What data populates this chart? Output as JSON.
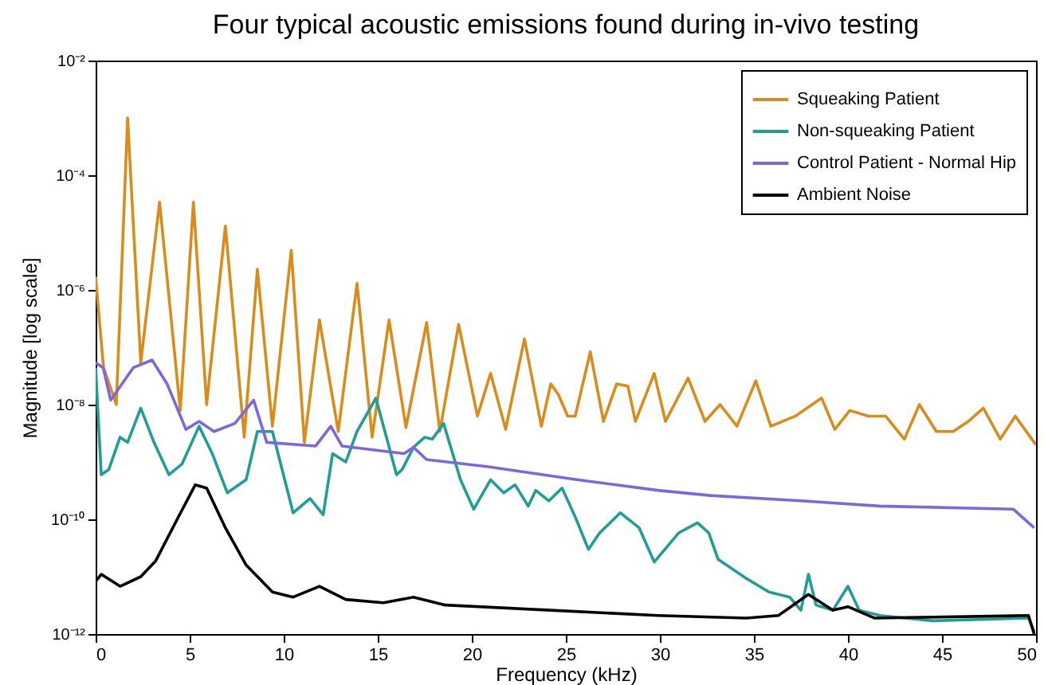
{
  "chart_data": {
    "type": "line",
    "title": "Four typical acoustic emissions found during in-vivo testing",
    "xlabel": "Frequency (kHz)",
    "ylabel": "Magnitude [log scale]",
    "log": "y",
    "legend": "top right",
    "xlim": [
      0,
      50
    ],
    "xticks": [
      0,
      5,
      10,
      15,
      20,
      25,
      30,
      35,
      40,
      45,
      50
    ],
    "ylim": [
      1e-12,
      0.01
    ],
    "yticks": [
      {
        "value": 1e-12,
        "label": "10⁻¹²"
      },
      {
        "value": 1e-10,
        "label": "10⁻¹⁰"
      },
      {
        "value": 1e-08,
        "label": "10⁻⁸"
      },
      {
        "value": 1e-06,
        "label": "10⁻⁶"
      },
      {
        "value": 0.0001,
        "label": "10⁻⁴"
      },
      {
        "value": 0.01,
        "label": "10⁻²"
      }
    ],
    "series": [
      {
        "name": "Squeaking Patient",
        "color": "#d98c1a",
        "x": [
          0,
          0.42,
          1.1,
          1.7,
          2.4,
          3.4,
          4.5,
          5.2,
          5.9,
          6.9,
          7.9,
          8.6,
          9.4,
          10.4,
          11.1,
          11.9,
          12.9,
          13.9,
          14.7,
          15.6,
          16.5,
          17.6,
          18.3,
          19.3,
          20.3,
          21.0,
          21.8,
          22.8,
          23.7,
          24.2,
          24.6,
          25.1,
          25.5,
          26.3,
          27.0,
          27.7,
          28.3,
          28.7,
          29.7,
          30.3,
          31.5,
          32.4,
          33.2,
          34.1,
          35.1,
          35.9,
          37.2,
          38.6,
          39.3,
          40.1,
          41.1,
          42.0,
          43.0,
          43.8,
          44.7,
          45.6,
          46.4,
          47.2,
          48.1,
          48.9,
          49.9,
          50
        ],
        "values": [
          1.7e-06,
          4.4e-08,
          1e-08,
          0.001,
          5.4e-08,
          3.4e-05,
          7.9e-09,
          3.4e-05,
          1e-08,
          1.3e-05,
          2.7e-09,
          2.3e-06,
          4.2e-09,
          4.9e-06,
          2.2e-09,
          3e-07,
          3.4e-09,
          1.3e-06,
          2.7e-09,
          3e-07,
          4e-09,
          2.7e-07,
          3.4e-09,
          2.5e-07,
          6.3e-09,
          3.5e-08,
          3.7e-09,
          1.4e-07,
          4.2e-09,
          2.3e-08,
          1.5e-08,
          6.3e-09,
          6.3e-09,
          8.3e-08,
          5.1e-09,
          2.3e-08,
          2.1e-08,
          5.1e-09,
          3.5e-08,
          5.1e-09,
          2.9e-08,
          5.1e-09,
          1e-08,
          4.2e-09,
          2.6e-08,
          4.2e-09,
          6.3e-09,
          1.3e-08,
          3.7e-09,
          7.9e-09,
          6.3e-09,
          6.3e-09,
          2.5e-09,
          1e-08,
          3.4e-09,
          3.4e-09,
          5.1e-09,
          8.7e-09,
          2.5e-09,
          6.3e-09,
          2.2e-09,
          2e-09
        ]
      },
      {
        "name": "Non-squeaking Patient",
        "color": "#1f9e96",
        "x": [
          0,
          0.3,
          0.7,
          1.3,
          1.7,
          2.4,
          3.1,
          3.9,
          4.6,
          5.5,
          6.2,
          7.0,
          8.0,
          8.6,
          9.4,
          10.5,
          11.4,
          12.1,
          12.6,
          13.3,
          13.9,
          14.9,
          16.0,
          16.3,
          16.9,
          17.5,
          17.9,
          18.5,
          19.4,
          20.1,
          21.0,
          21.7,
          22.3,
          23.0,
          23.4,
          24.1,
          24.8,
          25.5,
          26.2,
          26.8,
          27.9,
          28.9,
          29.7,
          31.0,
          32.0,
          32.6,
          33.1,
          34.6,
          35.8,
          36.9,
          37.5,
          37.9,
          38.3,
          39.2,
          40.0,
          40.6,
          41.7,
          44.5,
          49.6,
          49.9
        ],
        "values": [
          4.4e-08,
          6e-10,
          7.4e-10,
          2.7e-09,
          2.2e-09,
          8.7e-09,
          2.2e-09,
          6e-10,
          9.3e-10,
          4.2e-09,
          1.4e-09,
          2.9e-10,
          4.9e-10,
          3.4e-09,
          3.4e-09,
          1.3e-10,
          2.3e-10,
          1.2e-10,
          1.4e-09,
          1e-09,
          3.4e-09,
          1.3e-08,
          6e-10,
          7.4e-10,
          1.8e-09,
          2.7e-09,
          2.5e-09,
          4.7e-09,
          4.9e-10,
          1.5e-10,
          4.9e-10,
          2.9e-10,
          4e-10,
          1.7e-10,
          3.2e-10,
          2.1e-10,
          3.5e-10,
          1.1e-10,
          3e-11,
          5.8e-11,
          1.3e-10,
          7.1e-11,
          1.8e-11,
          5.8e-11,
          8.7e-11,
          5.8e-11,
          2e-11,
          9.3e-12,
          5.4e-12,
          4.4e-12,
          2.6e-12,
          1.1e-11,
          3.2e-12,
          2.6e-12,
          6.8e-12,
          2.6e-12,
          2.1e-12,
          1.7e-12,
          1.9e-12,
          1.1e-12
        ]
      },
      {
        "name": "Control Patient - Normal Hip",
        "color": "#7b68e0",
        "x": [
          0,
          0.4,
          0.8,
          2.0,
          3.0,
          3.8,
          4.8,
          5.5,
          6.3,
          7.4,
          8.4,
          9.1,
          11.7,
          12.5,
          13.1,
          16.4,
          16.9,
          17.6,
          20.8,
          25.6,
          29.9,
          32.7,
          37.5,
          41.7,
          48.8,
          49.9
        ],
        "values": [
          5.4e-08,
          4.4e-08,
          1.2e-08,
          4.4e-08,
          6e-08,
          2.3e-08,
          3.7e-09,
          5.1e-09,
          3.4e-09,
          4.7e-09,
          1.2e-08,
          2.2e-09,
          1.9e-09,
          4.2e-09,
          1.9e-09,
          1.4e-09,
          1.8e-09,
          1.1e-09,
          8.3e-10,
          4.9e-10,
          3.2e-10,
          2.6e-10,
          2.1e-10,
          1.7e-10,
          1.5e-10,
          7.1e-11
        ]
      },
      {
        "name": "Ambient Noise",
        "color": "#000000",
        "x": [
          0,
          0.3,
          1.3,
          2.4,
          3.2,
          4.4,
          5.3,
          5.9,
          6.9,
          8.0,
          9.4,
          10.5,
          11.9,
          13.3,
          15.3,
          16.9,
          18.6,
          24.2,
          29.9,
          34.6,
          36.3,
          37.9,
          39.2,
          40.0,
          41.4,
          49.6,
          49.9
        ],
        "values": [
          8.3e-12,
          1.1e-11,
          6.8e-12,
          1e-11,
          1.9e-11,
          1.1e-10,
          4e-10,
          3.5e-10,
          7.1e-11,
          1.6e-11,
          5.4e-12,
          4.4e-12,
          6.8e-12,
          4e-12,
          3.5e-12,
          4.4e-12,
          3.2e-12,
          2.6e-12,
          2.1e-12,
          1.9e-12,
          2.1e-12,
          4.9e-12,
          2.6e-12,
          3e-12,
          1.9e-12,
          2.1e-12,
          1e-12
        ]
      }
    ]
  }
}
